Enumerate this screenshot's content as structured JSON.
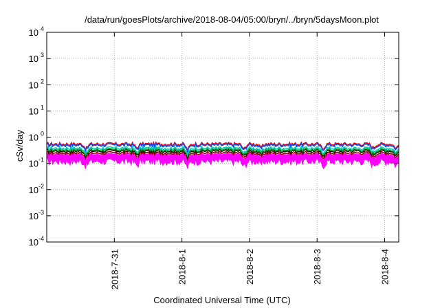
{
  "chart_data": {
    "type": "line",
    "title": "/data/run/goesPlots/archive/2018-08-04/05:00/bryn/../bryn/5daysMoon.plot",
    "xlabel": "Coordinated Universal Time (UTC)",
    "ylabel": "cSv/day",
    "y_scale": "log",
    "ylim": [
      0.0001,
      10000
    ],
    "y_ticks": [
      {
        "value": 0.0001,
        "base": "10",
        "exp": "-4"
      },
      {
        "value": 0.001,
        "base": "10",
        "exp": "-3"
      },
      {
        "value": 0.01,
        "base": "10",
        "exp": "-2"
      },
      {
        "value": 0.1,
        "base": "10",
        "exp": "-1"
      },
      {
        "value": 1,
        "base": "10",
        "exp": "0"
      },
      {
        "value": 10,
        "base": "10",
        "exp": "1"
      },
      {
        "value": 100,
        "base": "10",
        "exp": "2"
      },
      {
        "value": 1000,
        "base": "10",
        "exp": "3"
      },
      {
        "value": 10000,
        "base": "10",
        "exp": "4"
      }
    ],
    "xlim": [
      "2018-07-30 00:00",
      "2018-08-04 05:00"
    ],
    "x_ticks": [
      {
        "value": "2018-07-31 00:00",
        "label": "2018-7-31"
      },
      {
        "value": "2018-08-01 00:00",
        "label": "2018-8-1"
      },
      {
        "value": "2018-08-02 00:00",
        "label": "2018-8-2"
      },
      {
        "value": "2018-08-03 00:00",
        "label": "2018-8-3"
      },
      {
        "value": "2018-08-04 00:00",
        "label": "2018-8-4"
      }
    ],
    "grid": true,
    "series": [
      {
        "color": "#ff00ff",
        "level": 0.22,
        "style": "band",
        "band_low": 0.12
      },
      {
        "color": "#8b0000",
        "level": 0.25
      },
      {
        "color": "#000000",
        "level": 0.3
      },
      {
        "color": "#00a000",
        "level": 0.33
      },
      {
        "color": "#00c8c8",
        "level": 0.38
      },
      {
        "color": "#ff0000",
        "level": 0.55
      },
      {
        "color": "#0050ff",
        "level": 0.5
      }
    ],
    "dips": [
      {
        "at": "2018-07-30 14:00",
        "factor": 0.65
      },
      {
        "at": "2018-07-31 08:00",
        "factor": 0.7
      },
      {
        "at": "2018-08-01 02:00",
        "factor": 0.6
      },
      {
        "at": "2018-08-01 22:00",
        "factor": 0.62
      },
      {
        "at": "2018-08-02 04:00",
        "factor": 0.7
      },
      {
        "at": "2018-08-03 02:00",
        "factor": 0.65
      },
      {
        "at": "2018-08-03 20:00",
        "factor": 0.7
      },
      {
        "at": "2018-08-04 04:00",
        "factor": 0.68
      }
    ]
  }
}
